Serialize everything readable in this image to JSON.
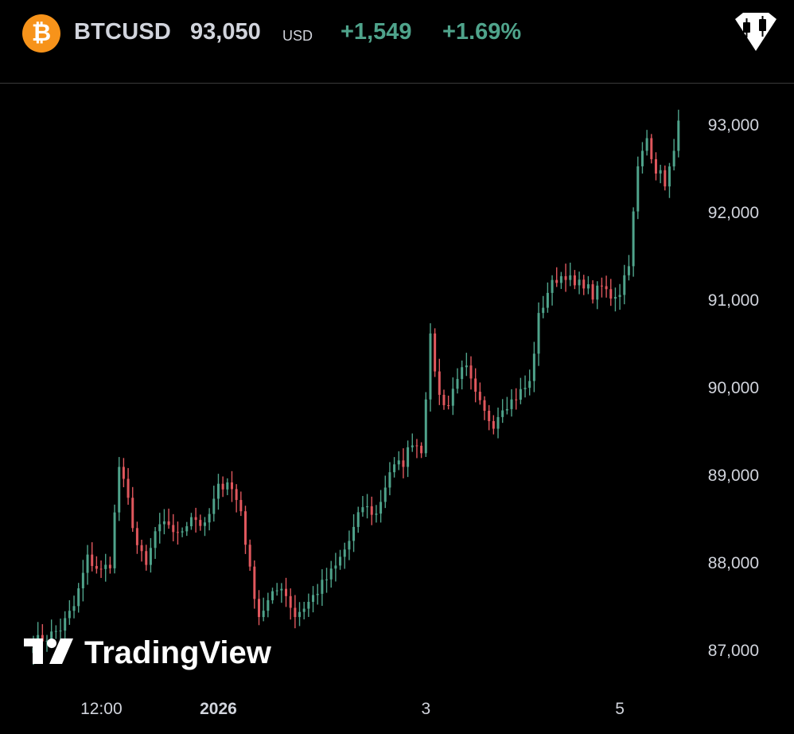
{
  "header": {
    "coin_icon": "bitcoin-icon",
    "coin_glyph": "₿",
    "symbol": "BTCUSD",
    "price": "93,050",
    "currency": "USD",
    "change": "+1,549",
    "change_pct": "+1.69%",
    "chart_type_icon": "candlestick-icon"
  },
  "watermark": {
    "text": "TradingView",
    "logo_icon": "tradingview-logo-icon"
  },
  "colors": {
    "up": "#4fa38b",
    "down": "#e0575d",
    "accent": "#f7931a",
    "background": "#000000"
  },
  "chart_data": {
    "type": "line",
    "style": "candlestick",
    "title": "",
    "xlabel": "",
    "ylabel": "",
    "ylim": [
      86650,
      93350
    ],
    "y_ticks": [
      87000,
      88000,
      89000,
      90000,
      91000,
      92000,
      93000
    ],
    "y_tick_labels": [
      "87,000",
      "88,000",
      "89,000",
      "90,000",
      "91,000",
      "92,000",
      "93,000"
    ],
    "x_ticks": [
      {
        "label": "12:00",
        "bold": false
      },
      {
        "label": "2026",
        "bold": true
      },
      {
        "label": "3",
        "bold": false
      },
      {
        "label": "5",
        "bold": false
      }
    ],
    "grid": false,
    "legend": "none",
    "close_path": [
      [
        0,
        87100
      ],
      [
        3,
        87150
      ],
      [
        6,
        87250
      ],
      [
        9,
        87500
      ],
      [
        12,
        88050
      ],
      [
        15,
        87900
      ],
      [
        17,
        88000
      ],
      [
        19,
        89100
      ],
      [
        21,
        88700
      ],
      [
        23,
        88200
      ],
      [
        25,
        87950
      ],
      [
        27,
        88350
      ],
      [
        30,
        88450
      ],
      [
        32,
        88300
      ],
      [
        35,
        88550
      ],
      [
        38,
        88400
      ],
      [
        41,
        88850
      ],
      [
        43,
        88950
      ],
      [
        46,
        88600
      ],
      [
        48,
        87900
      ],
      [
        50,
        87400
      ],
      [
        52,
        87550
      ],
      [
        55,
        87750
      ],
      [
        58,
        87400
      ],
      [
        61,
        87550
      ],
      [
        64,
        87750
      ],
      [
        67,
        87950
      ],
      [
        70,
        88250
      ],
      [
        73,
        88650
      ],
      [
        76,
        88550
      ],
      [
        79,
        89050
      ],
      [
        82,
        89150
      ],
      [
        84,
        89400
      ],
      [
        86,
        89300
      ],
      [
        88,
        90550
      ],
      [
        90,
        89900
      ],
      [
        92,
        89800
      ],
      [
        94,
        90150
      ],
      [
        96,
        90200
      ],
      [
        98,
        89900
      ],
      [
        100,
        89700
      ],
      [
        102,
        89600
      ],
      [
        104,
        89800
      ],
      [
        106,
        89850
      ],
      [
        108,
        89950
      ],
      [
        110,
        90050
      ],
      [
        112,
        90800
      ],
      [
        114,
        91100
      ],
      [
        116,
        91250
      ],
      [
        118,
        91300
      ],
      [
        120,
        91150
      ],
      [
        122,
        91200
      ],
      [
        124,
        91050
      ],
      [
        126,
        91150
      ],
      [
        128,
        91050
      ],
      [
        130,
        91100
      ],
      [
        132,
        91450
      ],
      [
        134,
        92500
      ],
      [
        136,
        92850
      ],
      [
        138,
        92500
      ],
      [
        140,
        92350
      ],
      [
        142,
        92650
      ],
      [
        143,
        93050
      ]
    ],
    "x_tick_bars": [
      11,
      41,
      87,
      130
    ]
  }
}
